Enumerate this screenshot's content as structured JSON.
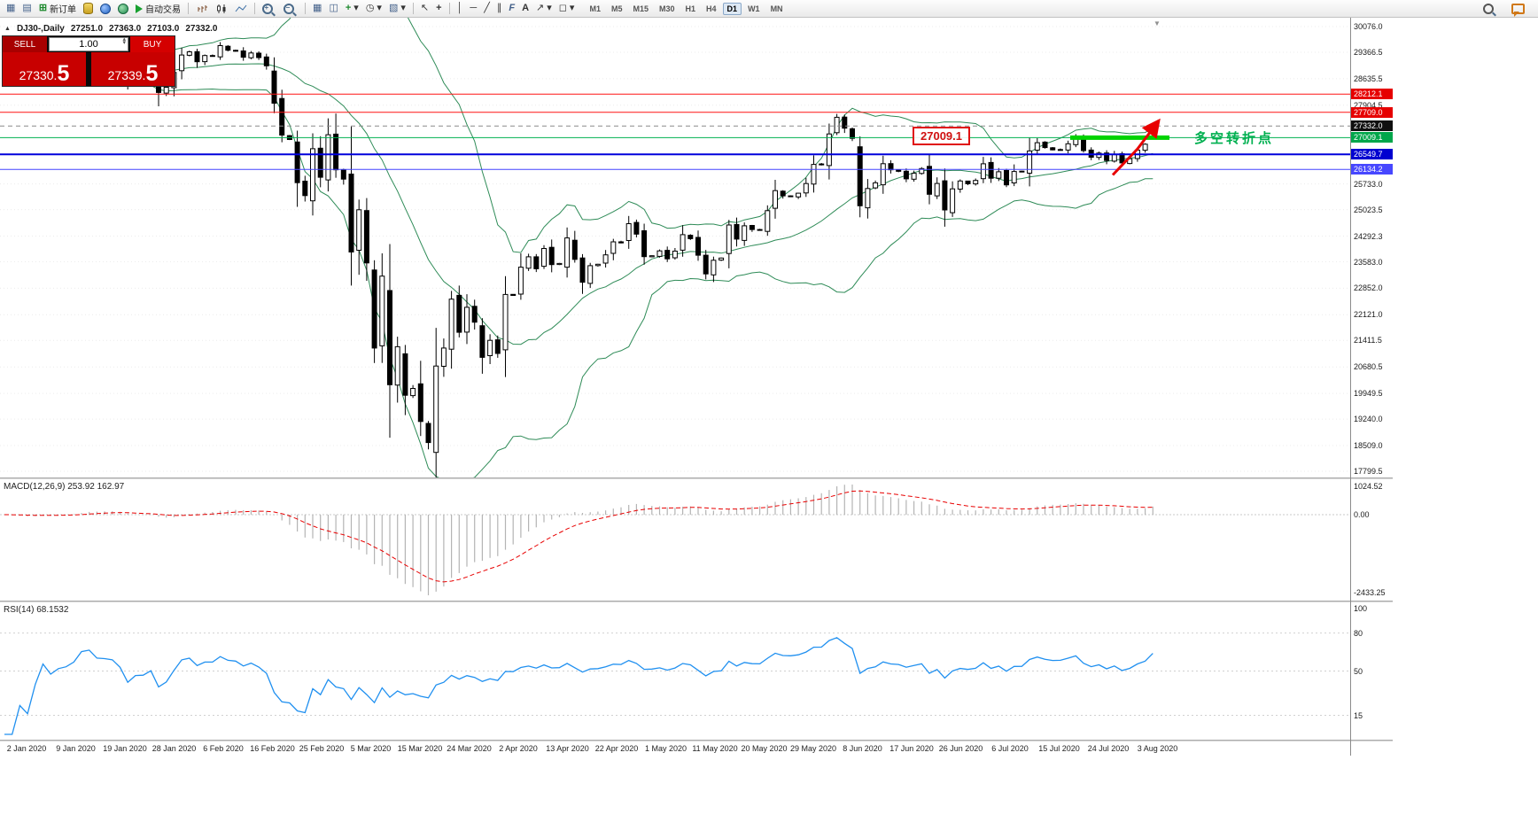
{
  "icons": {
    "chart_window": "▦",
    "profile": "▤",
    "new_order_plus": "⊞",
    "dropdown": "▾",
    "spin_up": "▴",
    "spin_down": "▾",
    "tile": "▦",
    "cascade": "◫",
    "indicators_plus": "+",
    "clock": "◷",
    "templates": "▧",
    "cursor": "↖",
    "crosshair": "+",
    "vline": "│",
    "hline": "─",
    "trendline": "╱",
    "channel": "∥",
    "fibonacci": "F",
    "text_tool": "A",
    "arrow_tool": "↗",
    "shapes": "◻",
    "zoom_in_sign": "+",
    "zoom_out_sign": "−",
    "ohlc_triangle": "▲",
    "shift_marker": "▼"
  },
  "toolbar": {
    "new_order_label": "新订单",
    "auto_trading_label": "自动交易",
    "timeframes": [
      "M1",
      "M5",
      "M15",
      "M30",
      "H1",
      "H4",
      "D1",
      "W1",
      "MN"
    ],
    "active_timeframe": "D1"
  },
  "chart": {
    "ohlc": {
      "symbol_period": "DJ30-,Daily",
      "open": "27251.0",
      "high": "27363.0",
      "low": "27103.0",
      "close": "27332.0"
    },
    "trade_panel": {
      "sell_label": "SELL",
      "buy_label": "BUY",
      "volume": "1.00",
      "sell_price_main": "27330.",
      "sell_price_big": "5",
      "buy_price_main": "27339.",
      "buy_price_big": "5"
    },
    "price_axis_labels": [
      "30076.0",
      "29366.5",
      "28635.5",
      "27904.5",
      "25733.0",
      "25023.5",
      "24292.3",
      "23583.0",
      "22852.0",
      "22121.0",
      "21411.5",
      "20680.5",
      "19949.5",
      "19240.0",
      "18509.0",
      "17799.5"
    ]
  },
  "macd": {
    "header": "MACD(12,26,9) 253.92 162.97",
    "axis": [
      "1024.52",
      "0.00",
      "-2433.25"
    ]
  },
  "rsi": {
    "header": "RSI(14) 68.1532",
    "axis": [
      "100",
      "80",
      "50",
      "15"
    ]
  },
  "chart_data": {
    "type": "candlestick",
    "symbol": "DJ30-",
    "period": "Daily",
    "ylim": [
      17799.5,
      30076.0
    ],
    "closes": [
      28869,
      28635,
      28704,
      28584,
      28745,
      28957,
      28824,
      28907,
      28939,
      29030,
      29298,
      29348,
      29196,
      29186,
      29160,
      28990,
      28536,
      28723,
      28734,
      28859,
      28256,
      28400,
      28808,
      29291,
      29380,
      29103,
      29277,
      29276,
      29551,
      29423,
      29398,
      29232,
      29348,
      29220,
      28992,
      27961,
      27081,
      26958,
      25767,
      25409,
      26703,
      25917,
      27091,
      26121,
      25865,
      23851,
      25018,
      23553,
      21201,
      23186,
      20189,
      21237,
      19899,
      20087,
      19174,
      18592,
      20705,
      21200,
      22552,
      21637,
      22327,
      21917,
      20944,
      21413,
      21053,
      22680,
      22654,
      23434,
      23719,
      23391,
      23950,
      23504,
      23537,
      24242,
      23650,
      23018,
      23476,
      23515,
      23775,
      24134,
      24102,
      24634,
      24346,
      23724,
      23749,
      23883,
      23665,
      23876,
      24331,
      24222,
      23765,
      23248,
      23625,
      23685,
      24597,
      24207,
      24576,
      24474,
      24465,
      24995,
      25548,
      25401,
      25383,
      25475,
      25743,
      26270,
      26282,
      27111,
      27572,
      27272,
      26990,
      25128,
      25605,
      25763,
      26290,
      26120,
      26080,
      25871,
      26025,
      26156,
      25446,
      25746,
      25016,
      25596,
      25813,
      25735,
      25827,
      26287,
      25890,
      26067,
      25706,
      26075,
      26085,
      26643,
      26870,
      26735,
      26672,
      26681,
      26840,
      27006,
      26652,
      26470,
      26585,
      26379,
      26540,
      26313,
      26428,
      26664,
      26828,
      27332
    ],
    "last_ohlc": {
      "open": 27251.0,
      "high": 27363.0,
      "low": 27103.0,
      "close": 27332.0
    },
    "indicators": {
      "bollinger": {
        "period": 20,
        "deviation": 2
      },
      "macd": {
        "fast": 12,
        "slow": 26,
        "signal": 9,
        "current_main": 253.92,
        "current_signal": 162.97
      },
      "rsi": {
        "period": 14,
        "current": 68.1532,
        "levels": [
          80,
          50,
          15
        ]
      }
    },
    "levels": [
      {
        "price": 28212.1,
        "label": "28212.1",
        "color": "#ff1414",
        "width": 1,
        "style": "solid",
        "badge_bg": "#e60000"
      },
      {
        "price": 27709.0,
        "label": "27709.0",
        "color": "#ff1414",
        "width": 1,
        "style": "solid",
        "badge_bg": "#e60000"
      },
      {
        "price": 27332.0,
        "label": "27332.0",
        "color": "#8a8a8a",
        "width": 1,
        "style": "dash",
        "badge_bg": "#101010"
      },
      {
        "price": 27009.1,
        "label": "27009.1",
        "color": "#00b050",
        "width": 1,
        "style": "solid",
        "badge_bg": "#00a64a"
      },
      {
        "price": 26549.7,
        "label": "26549.7",
        "color": "#0000dc",
        "width": 2,
        "style": "solid",
        "badge_bg": "#0000d0"
      },
      {
        "price": 26134.2,
        "label": "26134.2",
        "color": "#4444ff",
        "width": 1,
        "style": "solid",
        "badge_bg": "#4747ff"
      }
    ],
    "date_labels": [
      "2 Jan 2020",
      "9 Jan 2020",
      "19 Jan 2020",
      "28 Jan 2020",
      "6 Feb 2020",
      "16 Feb 2020",
      "25 Feb 2020",
      "5 Mar 2020",
      "15 Mar 2020",
      "24 Mar 2020",
      "2 Apr 2020",
      "13 Apr 2020",
      "22 Apr 2020",
      "1 May 2020",
      "11 May 2020",
      "20 May 2020",
      "29 May 2020",
      "8 Jun 2020",
      "17 Jun 2020",
      "26 Jun 2020",
      "6 Jul 2020",
      "15 Jul 2020",
      "24 Jul 2020",
      "3 Aug 2020"
    ],
    "annotations": {
      "pivot_price_label": "27009.1",
      "pivot_text": "多空转折点",
      "green_segment": {
        "price": 27009.1,
        "x_from": 1208,
        "x_to": 1320
      },
      "arrow_points": [
        [
          1256,
          25980
        ],
        [
          1284,
          26700
        ],
        [
          1308,
          27480
        ]
      ]
    }
  }
}
